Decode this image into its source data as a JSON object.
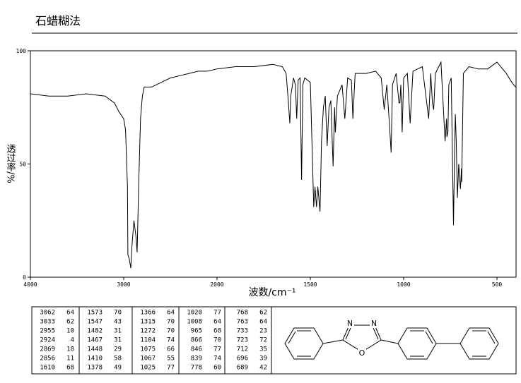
{
  "header": {
    "title": "石蜡糊法"
  },
  "chart_data": {
    "type": "line",
    "x_label": "波数/cm⁻¹",
    "y_label": "透过率/%",
    "color": "#000000",
    "xlim": [
      4000,
      400
    ],
    "xticks": [
      4000,
      3000,
      2000,
      1500,
      1000,
      500
    ],
    "ylim": [
      0,
      100
    ],
    "yticks": [
      0,
      50,
      100
    ],
    "x": [
      4000,
      3800,
      3600,
      3400,
      3200,
      3100,
      3050,
      3000,
      2980,
      2960,
      2955,
      2940,
      2924,
      2910,
      2890,
      2869,
      2856,
      2840,
      2820,
      2800,
      2780,
      2700,
      2600,
      2500,
      2400,
      2300,
      2200,
      2100,
      2000,
      1900,
      1800,
      1700,
      1650,
      1630,
      1620,
      1610,
      1605,
      1590,
      1580,
      1573,
      1565,
      1555,
      1547,
      1540,
      1530,
      1500,
      1482,
      1475,
      1467,
      1460,
      1448,
      1440,
      1430,
      1420,
      1410,
      1400,
      1390,
      1378,
      1370,
      1366,
      1355,
      1330,
      1315,
      1300,
      1280,
      1272,
      1260,
      1200,
      1150,
      1120,
      1104,
      1090,
      1075,
      1067,
      1060,
      1040,
      1025,
      1020,
      1015,
      1008,
      1000,
      980,
      965,
      950,
      900,
      866,
      855,
      846,
      839,
      830,
      800,
      778,
      770,
      768,
      763,
      758,
      745,
      733,
      728,
      723,
      718,
      712,
      705,
      696,
      690,
      689,
      680,
      650,
      600,
      550,
      500,
      450,
      420,
      400
    ],
    "y": [
      81,
      80,
      80,
      81,
      80,
      77,
      73,
      70,
      65,
      40,
      10,
      8,
      4,
      15,
      25,
      18,
      11,
      40,
      70,
      80,
      84,
      84,
      86,
      88,
      89,
      90,
      91,
      91,
      92,
      93,
      93,
      94,
      93,
      90,
      80,
      68,
      80,
      88,
      85,
      70,
      87,
      88,
      43,
      85,
      88,
      86,
      31,
      40,
      31,
      40,
      29,
      60,
      75,
      80,
      58,
      75,
      78,
      49,
      75,
      64,
      80,
      85,
      70,
      88,
      87,
      70,
      90,
      90,
      91,
      88,
      74,
      85,
      66,
      55,
      85,
      90,
      77,
      77,
      85,
      64,
      88,
      90,
      68,
      91,
      93,
      70,
      90,
      77,
      74,
      90,
      95,
      60,
      70,
      62,
      64,
      85,
      88,
      23,
      50,
      72,
      60,
      35,
      50,
      39,
      48,
      42,
      90,
      93,
      92,
      92,
      95,
      90,
      86,
      84
    ]
  },
  "table": {
    "columns": [
      [
        [
          "3062",
          "64"
        ],
        [
          "3033",
          "62"
        ],
        [
          "2955",
          "10"
        ],
        [
          "2924",
          "4"
        ],
        [
          "2869",
          "18"
        ],
        [
          "2856",
          "11"
        ],
        [
          "1610",
          "68"
        ]
      ],
      [
        [
          "1573",
          "70"
        ],
        [
          "1547",
          "43"
        ],
        [
          "1482",
          "31"
        ],
        [
          "1467",
          "31"
        ],
        [
          "1448",
          "29"
        ],
        [
          "1410",
          "58"
        ],
        [
          "1378",
          "49"
        ]
      ],
      [
        [
          "1366",
          "64"
        ],
        [
          "1315",
          "70"
        ],
        [
          "1272",
          "70"
        ],
        [
          "1104",
          "74"
        ],
        [
          "1075",
          "66"
        ],
        [
          "1067",
          "55"
        ],
        [
          "1025",
          "77"
        ]
      ],
      [
        [
          "1020",
          "77"
        ],
        [
          "1008",
          "64"
        ],
        [
          "965",
          "68"
        ],
        [
          "866",
          "70"
        ],
        [
          "846",
          "77"
        ],
        [
          "839",
          "74"
        ],
        [
          "778",
          "60"
        ]
      ],
      [
        [
          "768",
          "62"
        ],
        [
          "763",
          "64"
        ],
        [
          "733",
          "23"
        ],
        [
          "723",
          "72"
        ],
        [
          "712",
          "35"
        ],
        [
          "696",
          "39"
        ],
        [
          "689",
          "42"
        ]
      ]
    ]
  },
  "structure": {
    "atoms": [
      "N",
      "N",
      "O"
    ]
  }
}
